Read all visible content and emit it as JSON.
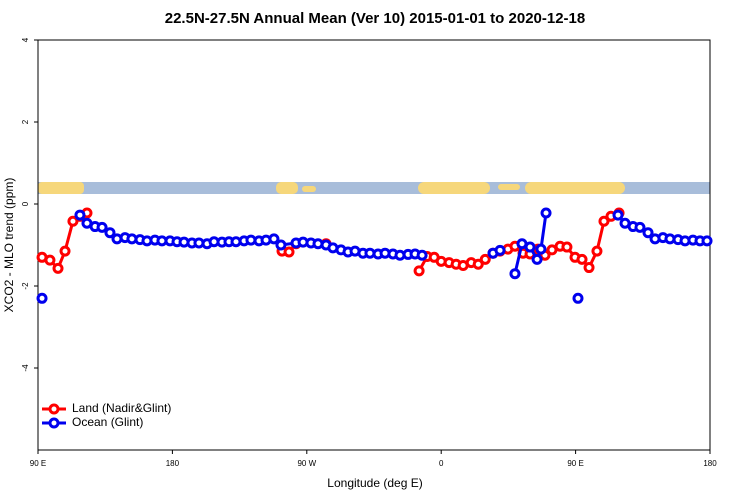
{
  "chart_data": {
    "type": "line",
    "title": "22.5N-27.5N Annual Mean (Ver 10)   2015-01-01 to 2020-12-18",
    "x_label": "Longitude (deg E)",
    "y_label": "XCO2 - MLO trend (ppm)",
    "xlim": [
      90,
      540
    ],
    "ylim": [
      -6,
      4
    ],
    "xticks": [
      {
        "value": 90,
        "label": "90 E"
      },
      {
        "value": 180,
        "label": "180"
      },
      {
        "value": 270,
        "label": "90 W"
      },
      {
        "value": 360,
        "label": "0"
      },
      {
        "value": 450,
        "label": "90 E"
      },
      {
        "value": 540,
        "label": "180"
      }
    ],
    "yticks": [
      -4,
      -2,
      0,
      2,
      4
    ],
    "legend": "bottomleft",
    "series": [
      {
        "name": "Land (Nadir&Glint)",
        "color": "#ff0000",
        "x": [
          92.7,
          98.0,
          103.4,
          108.1,
          113.4,
          118.1,
          122.8,
          null,
          253.4,
          258.1,
          262.8,
          null,
          282.9,
          null,
          345.2,
          350.6,
          355.3,
          360.0,
          365.3,
          370.0,
          374.7,
          380.1,
          384.8,
          389.5,
          394.7,
          399.4,
          404.7,
          409.4,
          414.8,
          419.5,
          424.8,
          429.5,
          434.2,
          439.6,
          444.2,
          449.6,
          454.3,
          459.0,
          464.3,
          469.0,
          473.7,
          479.1
        ],
        "values": [
          -1.3,
          -1.37,
          -1.57,
          -1.15,
          -0.42,
          -0.3,
          -0.22,
          null,
          -1.15,
          -1.17,
          -0.97,
          null,
          -0.97,
          null,
          -1.63,
          -1.28,
          -1.3,
          -1.4,
          -1.43,
          -1.47,
          -1.5,
          -1.43,
          -1.47,
          -1.35,
          -1.2,
          -1.15,
          -1.1,
          -1.03,
          -1.2,
          -1.22,
          -1.1,
          -1.25,
          -1.12,
          -1.03,
          -1.05,
          -1.3,
          -1.35,
          -1.55,
          -1.15,
          -0.42,
          -0.3,
          -0.22
        ]
      },
      {
        "name": "Ocean (Glint)",
        "color": "#0000ee",
        "x": [
          92.7,
          null,
          118.1,
          122.8,
          128.2,
          132.9,
          138.2,
          142.9,
          148.3,
          152.9,
          158.3,
          163.0,
          168.3,
          173.0,
          178.4,
          183.1,
          187.8,
          193.1,
          197.8,
          203.2,
          207.9,
          213.2,
          217.9,
          222.6,
          228.0,
          232.6,
          238.0,
          242.7,
          248.0,
          252.7,
          262.8,
          267.5,
          272.8,
          277.5,
          282.9,
          287.5,
          292.9,
          297.6,
          302.3,
          307.6,
          312.3,
          317.7,
          322.4,
          327.7,
          332.4,
          337.8,
          342.5,
          347.2,
          null,
          394.7,
          399.4,
          null,
          409.4,
          414.1,
          419.5,
          424.2,
          426.8,
          430.2,
          null,
          451.6,
          null,
          478.4,
          483.1,
          488.5,
          493.1,
          498.5,
          503.2,
          508.5,
          513.2,
          518.6,
          523.3,
          528.6,
          533.3,
          538.0
        ],
        "values": [
          -2.3,
          null,
          -0.27,
          -0.47,
          -0.55,
          -0.57,
          -0.7,
          -0.85,
          -0.82,
          -0.85,
          -0.87,
          -0.9,
          -0.88,
          -0.9,
          -0.9,
          -0.92,
          -0.93,
          -0.95,
          -0.95,
          -0.97,
          -0.92,
          -0.93,
          -0.92,
          -0.92,
          -0.9,
          -0.88,
          -0.9,
          -0.88,
          -0.85,
          -1.0,
          -0.95,
          -0.93,
          -0.95,
          -0.97,
          -1.0,
          -1.07,
          -1.12,
          -1.17,
          -1.15,
          -1.2,
          -1.2,
          -1.22,
          -1.2,
          -1.22,
          -1.25,
          -1.23,
          -1.22,
          -1.25,
          null,
          -1.2,
          -1.13,
          null,
          -1.7,
          -0.97,
          -1.05,
          -1.35,
          -1.1,
          -0.22,
          null,
          -2.3,
          null,
          -0.27,
          -0.47,
          -0.55,
          -0.57,
          -0.7,
          -0.85,
          -0.82,
          -0.85,
          -0.87,
          -0.9,
          -0.88,
          -0.9,
          -0.9
        ]
      }
    ]
  }
}
